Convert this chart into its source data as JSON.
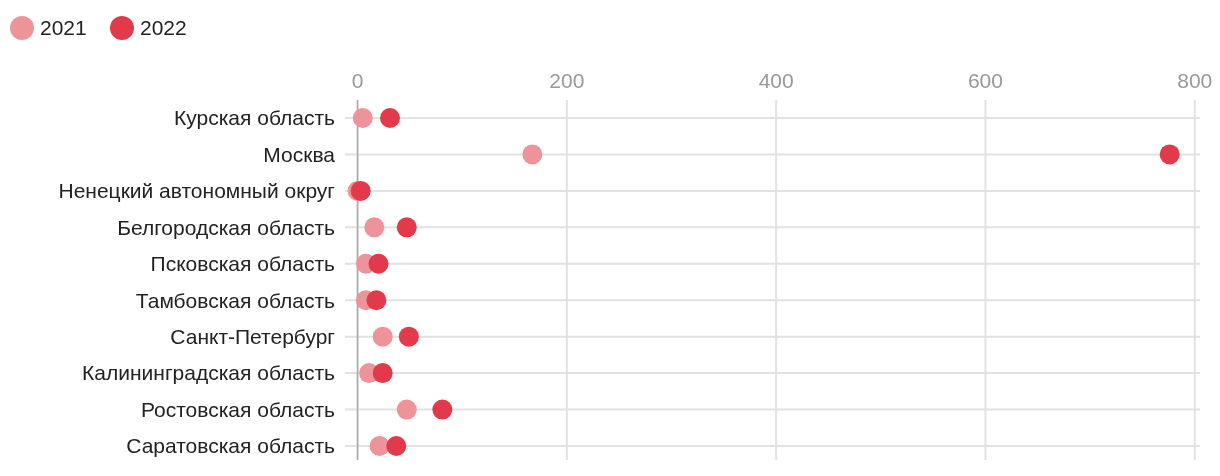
{
  "chart_data": {
    "type": "scatter",
    "orientation": "horizontal",
    "categories": [
      "Курская область",
      "Москва",
      "Ненецкий автономный округ",
      "Белгородская область",
      "Псковская область",
      "Тамбовская область",
      "Санкт-Петербург",
      "Калининградская область",
      "Ростовская область",
      "Саратовская область"
    ],
    "series": [
      {
        "name": "2021",
        "color": "#ee939a",
        "values": [
          5,
          167,
          0,
          16,
          8,
          8,
          24,
          11,
          47,
          21
        ]
      },
      {
        "name": "2022",
        "color": "#e23a4a",
        "values": [
          31,
          776,
          3,
          47,
          20,
          18,
          49,
          24,
          81,
          37
        ]
      }
    ],
    "xlim": [
      -12,
      805
    ],
    "xticks": [
      0,
      200,
      400,
      600,
      800
    ],
    "grid": true,
    "legend": "top left",
    "marker": "circle"
  }
}
